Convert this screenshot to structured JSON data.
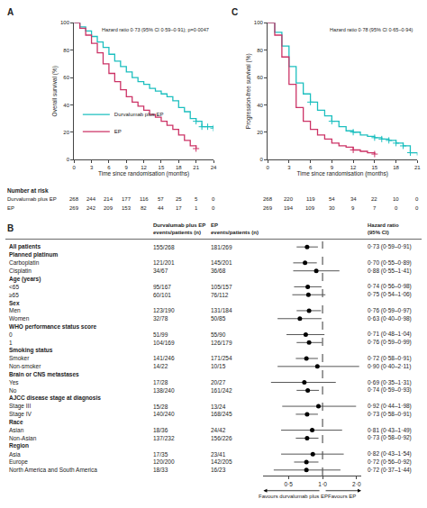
{
  "chart_data": [
    {
      "type": "line",
      "title": "A",
      "xlabel": "Time since randomisation (months)",
      "ylabel": "Overall survival (%)",
      "xlim": [
        0,
        24
      ],
      "xticks": [
        0,
        3,
        6,
        9,
        12,
        15,
        18,
        21,
        24
      ],
      "ylim": [
        0,
        100
      ],
      "yticks": [
        0,
        20,
        40,
        60,
        80,
        100
      ],
      "grid": false,
      "legend": "lower left",
      "line_style": "step",
      "annotations": [
        "Hazard ratio 0·73 (95% CI 0·59–0·91); p=0·0047"
      ],
      "series": [
        {
          "name": "Durvalumab plus EP",
          "color": "#1CBFBF",
          "x": [
            0,
            1,
            2,
            3,
            4,
            5,
            6,
            7,
            8,
            9,
            10,
            11,
            12,
            13,
            14,
            15,
            16,
            17,
            18,
            19,
            20,
            21,
            22,
            23,
            24
          ],
          "values": [
            100,
            97,
            94,
            90,
            86,
            82,
            77,
            72,
            68,
            64,
            60,
            57,
            55,
            52,
            50,
            48,
            46,
            43,
            38,
            35,
            30,
            28,
            24,
            24,
            23
          ],
          "censored": {
            "x": [
              21,
              22,
              23,
              24
            ],
            "values": [
              28,
              24,
              24,
              23
            ]
          }
        },
        {
          "name": "EP",
          "color": "#CC3366",
          "x": [
            0,
            1,
            2,
            3,
            4,
            5,
            6,
            7,
            8,
            9,
            10,
            11,
            12,
            13,
            14,
            15,
            16,
            17,
            18,
            19,
            20,
            21
          ],
          "values": [
            100,
            96,
            91,
            85,
            78,
            70,
            63,
            57,
            51,
            46,
            42,
            39,
            36,
            33,
            31,
            28,
            25,
            22,
            18,
            14,
            10,
            8
          ],
          "censored": {
            "x": [
              21
            ],
            "values": [
              8
            ]
          }
        }
      ],
      "number_at_risk": {
        "label": "Number at risk",
        "x": [
          0,
          3,
          6,
          9,
          12,
          15,
          18,
          21,
          24
        ],
        "rows": [
          {
            "name": "Durvalumab plus EP",
            "values": [
              268,
              244,
              214,
              177,
              116,
              57,
              25,
              5,
              0
            ]
          },
          {
            "name": "EP",
            "values": [
              269,
              242,
              209,
              153,
              82,
              44,
              17,
              1,
              0
            ]
          }
        ]
      }
    },
    {
      "type": "line",
      "title": "C",
      "xlabel": "Time since randomisation (months)",
      "ylabel": "Progression-free survival (%)",
      "xlim": [
        0,
        21
      ],
      "xticks": [
        0,
        3,
        6,
        9,
        12,
        15,
        18,
        21
      ],
      "ylim": [
        0,
        100
      ],
      "yticks": [
        0,
        20,
        40,
        60,
        80,
        100
      ],
      "grid": false,
      "line_style": "step",
      "annotations": [
        "Hazard ratio 0·78 (95% CI 0·65–0·94)"
      ],
      "series": [
        {
          "color": "#1CBFBF",
          "x": [
            0,
            1,
            2,
            3,
            4,
            5,
            6,
            7,
            8,
            9,
            10,
            11,
            12,
            13,
            14,
            15,
            16,
            17,
            18,
            19,
            20,
            21
          ],
          "values": [
            100,
            93,
            83,
            68,
            56,
            48,
            42,
            36,
            32,
            28,
            24,
            21,
            20,
            18,
            17,
            16,
            15,
            14,
            12,
            10,
            5,
            3
          ],
          "censored": {
            "x": [
              6,
              9,
              12,
              15,
              16,
              17,
              18,
              19,
              20
            ],
            "values": [
              42,
              28,
              20,
              16,
              15,
              14,
              12,
              10,
              5
            ]
          }
        },
        {
          "color": "#CC3366",
          "x": [
            0,
            1,
            2,
            3,
            4,
            5,
            6,
            7,
            8,
            9,
            10,
            11,
            12,
            13,
            14,
            15
          ],
          "values": [
            100,
            91,
            75,
            55,
            38,
            28,
            22,
            18,
            15,
            12,
            10,
            9,
            7,
            6,
            5,
            4
          ],
          "censored": {
            "x": [
              12,
              15
            ],
            "values": [
              7,
              4
            ]
          }
        }
      ],
      "number_at_risk": {
        "x": [
          0,
          3,
          6,
          9,
          12,
          15,
          18,
          21
        ],
        "rows": [
          {
            "values": [
              268,
              220,
              119,
              54,
              34,
              22,
              10,
              0
            ]
          },
          {
            "values": [
              269,
              194,
              109,
              30,
              9,
              7,
              0,
              0
            ]
          }
        ]
      }
    },
    {
      "type": "forest",
      "title": "B",
      "column_headers": [
        "Durvalumab plus EP\nevents/patients (n)",
        "EP\nevents/patients (n)",
        "Hazard ratio\n(95% CI)"
      ],
      "log": "x",
      "xlim": [
        0.3,
        2.2
      ],
      "xticks": [
        {
          "value": 0.5,
          "label": "0·5"
        },
        {
          "value": 1.0,
          "label": "1·0"
        },
        {
          "value": 2.0,
          "label": "2·0"
        }
      ],
      "grid": false,
      "reference": 1,
      "annotations": [
        "Favours durvalumab plus EP",
        "Favours EP"
      ],
      "rows": [
        {
          "label": "All patients",
          "bold": true,
          "durva": "155/268",
          "ep": "181/269",
          "hr": 0.73,
          "ci_lo": 0.59,
          "ci_hi": 0.91,
          "hr_text": "0·73 (0·59–0·91)"
        },
        {
          "label": "Planned platinum",
          "bold": true
        },
        {
          "label": "Carboplatin",
          "bold": false,
          "durva": "121/201",
          "ep": "145/201",
          "hr": 0.7,
          "ci_lo": 0.55,
          "ci_hi": 0.89,
          "hr_text": "0·70 (0·55–0·89)"
        },
        {
          "label": "Cisplatin",
          "bold": false,
          "durva": "34/67",
          "ep": "36/68",
          "hr": 0.88,
          "ci_lo": 0.55,
          "ci_hi": 1.41,
          "hr_text": "0·88 (0·55–1·41)"
        },
        {
          "label": "Age (years)",
          "bold": true
        },
        {
          "label": "<65",
          "bold": false,
          "durva": "95/167",
          "ep": "105/157",
          "hr": 0.74,
          "ci_lo": 0.56,
          "ci_hi": 0.98,
          "hr_text": "0·74 (0·56–0·98)"
        },
        {
          "label": "≥65",
          "bold": false,
          "durva": "60/101",
          "ep": "76/112",
          "hr": 0.75,
          "ci_lo": 0.54,
          "ci_hi": 1.06,
          "hr_text": "0·75 (0·54–1·06)"
        },
        {
          "label": "Sex",
          "bold": true
        },
        {
          "label": "Men",
          "bold": false,
          "durva": "123/190",
          "ep": "131/184",
          "hr": 0.76,
          "ci_lo": 0.59,
          "ci_hi": 0.97,
          "hr_text": "0·76 (0·59–0·97)"
        },
        {
          "label": "Women",
          "bold": false,
          "durva": "32/78",
          "ep": "50/85",
          "hr": 0.63,
          "ci_lo": 0.4,
          "ci_hi": 0.98,
          "hr_text": "0·63 (0·40–0·98)"
        },
        {
          "label": "WHO performance status score",
          "bold": true
        },
        {
          "label": "0",
          "bold": false,
          "durva": "51/99",
          "ep": "55/90",
          "hr": 0.71,
          "ci_lo": 0.48,
          "ci_hi": 1.04,
          "hr_text": "0·71 (0·48–1·04)"
        },
        {
          "label": "1",
          "bold": false,
          "durva": "104/169",
          "ep": "126/179",
          "hr": 0.76,
          "ci_lo": 0.59,
          "ci_hi": 0.99,
          "hr_text": "0·76 (0·59–0·99)"
        },
        {
          "label": "Smoking status",
          "bold": true
        },
        {
          "label": "Smoker",
          "bold": false,
          "durva": "141/246",
          "ep": "171/254",
          "hr": 0.72,
          "ci_lo": 0.58,
          "ci_hi": 0.91,
          "hr_text": "0·72 (0·58–0·91)"
        },
        {
          "label": "Non-smoker",
          "bold": false,
          "durva": "14/22",
          "ep": "10/15",
          "hr": 0.9,
          "ci_lo": 0.4,
          "ci_hi": 2.11,
          "hr_text": "0·90 (0·40–2·11)"
        },
        {
          "label": "Brain or CNS metastases",
          "bold": true
        },
        {
          "label": "Yes",
          "bold": false,
          "durva": "17/28",
          "ep": "20/27",
          "hr": 0.69,
          "ci_lo": 0.35,
          "ci_hi": 1.31,
          "hr_text": "0·69 (0·35–1·31)"
        },
        {
          "label": "No",
          "bold": false,
          "durva": "138/240",
          "ep": "161/242",
          "hr": 0.74,
          "ci_lo": 0.59,
          "ci_hi": 0.93,
          "hr_text": "0·74 (0·59–0·93)"
        },
        {
          "label": "AJCC disease stage at diagnosis",
          "bold": true
        },
        {
          "label": "Stage III",
          "bold": false,
          "durva": "15/28",
          "ep": "13/24",
          "hr": 0.92,
          "ci_lo": 0.44,
          "ci_hi": 1.98,
          "hr_text": "0·92 (0·44–1·98)"
        },
        {
          "label": "Stage IV",
          "bold": false,
          "durva": "140/240",
          "ep": "168/245",
          "hr": 0.73,
          "ci_lo": 0.58,
          "ci_hi": 0.91,
          "hr_text": "0·73 (0·58–0·91)"
        },
        {
          "label": "Race",
          "bold": true
        },
        {
          "label": "Asian",
          "bold": false,
          "durva": "18/36",
          "ep": "24/42",
          "hr": 0.81,
          "ci_lo": 0.43,
          "ci_hi": 1.49,
          "hr_text": "0·81 (0·43–1·49)"
        },
        {
          "label": "Non-Asian",
          "bold": false,
          "durva": "137/232",
          "ep": "156/226",
          "hr": 0.73,
          "ci_lo": 0.58,
          "ci_hi": 0.92,
          "hr_text": "0·73 (0·58–0·92)"
        },
        {
          "label": "Region",
          "bold": true
        },
        {
          "label": "Asia",
          "bold": false,
          "durva": "17/35",
          "ep": "23/41",
          "hr": 0.82,
          "ci_lo": 0.43,
          "ci_hi": 1.54,
          "hr_text": "0·82 (0·43–1·54)"
        },
        {
          "label": "Europe",
          "bold": false,
          "durva": "120/200",
          "ep": "142/205",
          "hr": 0.72,
          "ci_lo": 0.56,
          "ci_hi": 0.92,
          "hr_text": "0·72 (0·56–0·92)"
        },
        {
          "label": "North America and South America",
          "bold": false,
          "durva": "18/33",
          "ep": "16/23",
          "hr": 0.72,
          "ci_lo": 0.37,
          "ci_hi": 1.44,
          "hr_text": "0·72 (0·37–1·44)"
        }
      ]
    }
  ]
}
